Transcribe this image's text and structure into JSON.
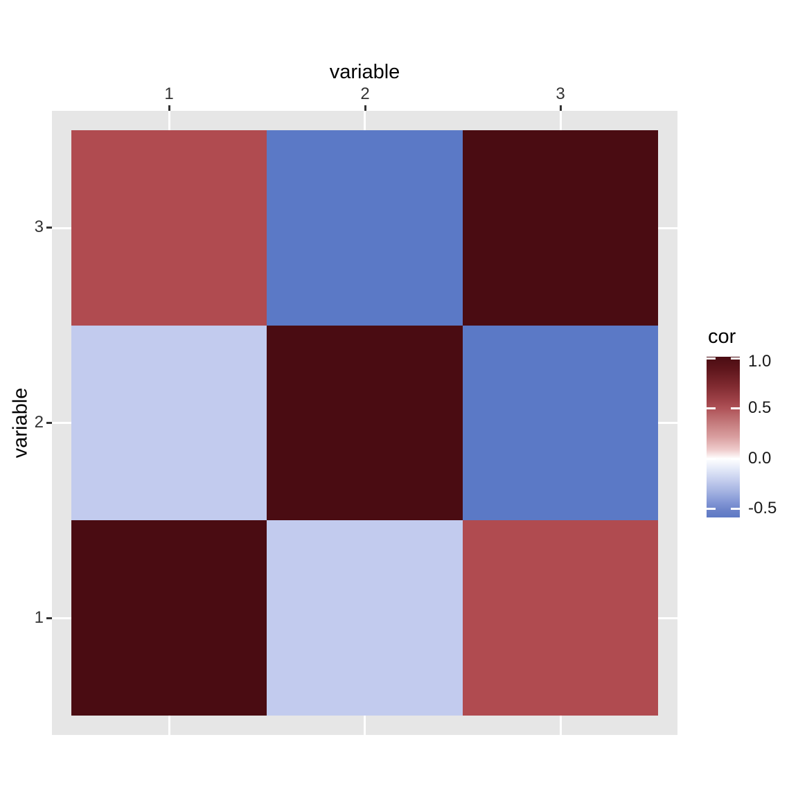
{
  "chart_data": {
    "type": "heatmap",
    "title": "",
    "xlabel": "variable",
    "ylabel": "variable",
    "x_categories": [
      "1",
      "2",
      "3"
    ],
    "y_categories_bottom_to_top": [
      "1",
      "2",
      "3"
    ],
    "rows_top_to_bottom": [
      {
        "y": "3",
        "values": [
          0.6,
          -0.5,
          1.0
        ],
        "colors": [
          "#b04b50",
          "#5b79c6",
          "#4a0c12"
        ]
      },
      {
        "y": "2",
        "values": [
          -0.2,
          1.0,
          -0.5
        ],
        "colors": [
          "#c2cbee",
          "#4a0c12",
          "#5b79c6"
        ]
      },
      {
        "y": "1",
        "values": [
          1.0,
          -0.2,
          0.6
        ],
        "colors": [
          "#4a0c12",
          "#c2cbee",
          "#b04b50"
        ]
      }
    ],
    "grid": true,
    "legend": {
      "title": "cor",
      "position": "right",
      "ticks": [
        "1.0",
        "0.5",
        "0.0",
        "-0.5"
      ],
      "tick_values": [
        1.0,
        0.5,
        0.0,
        -0.5
      ],
      "range": [
        -0.53,
        1.0
      ],
      "gradient_high": "#4a0c12",
      "gradient_mid": "#ffffff",
      "gradient_low": "#5b79c6",
      "gradient_stops": [
        {
          "pos": 0,
          "color": "#4a0c12"
        },
        {
          "pos": 8,
          "color": "#5f161c"
        },
        {
          "pos": 18,
          "color": "#7f2a30"
        },
        {
          "pos": 28,
          "color": "#a1444a"
        },
        {
          "pos": 32,
          "color": "#ae5257"
        },
        {
          "pos": 41,
          "color": "#c47a7c"
        },
        {
          "pos": 50,
          "color": "#d99fa0"
        },
        {
          "pos": 58,
          "color": "#efcccc"
        },
        {
          "pos": 63.4,
          "color": "#ffffff"
        },
        {
          "pos": 69,
          "color": "#e7ecf9"
        },
        {
          "pos": 76,
          "color": "#c8d1ef"
        },
        {
          "pos": 84,
          "color": "#a3b2e1"
        },
        {
          "pos": 91,
          "color": "#8094d4"
        },
        {
          "pos": 96,
          "color": "#6a81c8"
        },
        {
          "pos": 100,
          "color": "#5e79c4"
        }
      ]
    }
  },
  "axes": {
    "top_title": "variable",
    "left_title": "variable",
    "top_ticks": [
      "1",
      "2",
      "3"
    ],
    "left_ticks_top_to_bottom": [
      "3",
      "2",
      "1"
    ]
  },
  "colors": {
    "page_bg": "#ffffff",
    "panel_bg": "#e6e6e6",
    "gridline": "#ffffff",
    "tick_mark": "#333333",
    "tick_label_text": "#333333",
    "title_text": "#000000"
  }
}
